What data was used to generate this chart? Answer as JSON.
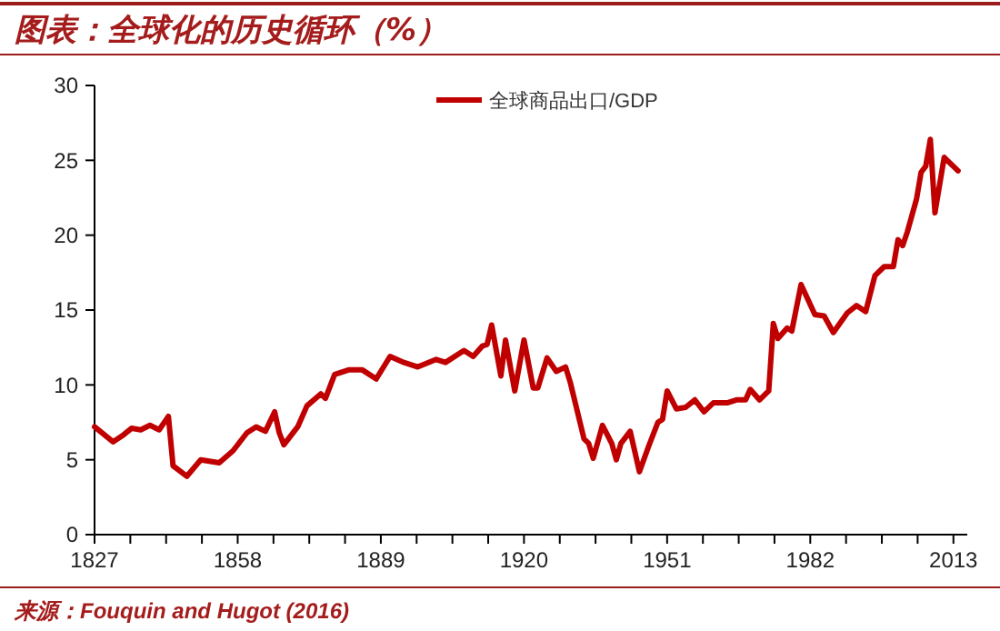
{
  "chart_data": {
    "type": "line",
    "title": "图表：全球化的历史循环（%）",
    "annotations": [
      "来源：Fouquin and Hugot (2016)"
    ],
    "legend": "top",
    "xlim": [
      1827,
      2016
    ],
    "xticks": [
      1827,
      {
        "value": 1834.75,
        "label": null
      },
      {
        "value": 1842.5,
        "label": null
      },
      {
        "value": 1850.25,
        "label": null
      },
      1858,
      {
        "value": 1865.75,
        "label": null
      },
      {
        "value": 1873.5,
        "label": null
      },
      {
        "value": 1881.25,
        "label": null
      },
      1889,
      {
        "value": 1896.75,
        "label": null
      },
      {
        "value": 1904.5,
        "label": null
      },
      {
        "value": 1912.25,
        "label": null
      },
      1920,
      {
        "value": 1927.75,
        "label": null
      },
      {
        "value": 1935.5,
        "label": null
      },
      {
        "value": 1943.25,
        "label": null
      },
      1951,
      {
        "value": 1958.75,
        "label": null
      },
      {
        "value": 1966.5,
        "label": null
      },
      {
        "value": 1974.25,
        "label": null
      },
      1982,
      {
        "value": 1989.75,
        "label": null
      },
      {
        "value": 1997.5,
        "label": null
      },
      {
        "value": 2005.25,
        "label": null
      },
      2013
    ],
    "ylim": [
      0,
      30
    ],
    "yticks": [
      0,
      5,
      10,
      15,
      20,
      25,
      30
    ],
    "series": [
      {
        "name": "全球商品出口/GDP",
        "color": "#c00000",
        "x": [
          1827,
          1831,
          1833,
          1835,
          1837,
          1839,
          1841,
          1843,
          1844,
          1847,
          1850,
          1854,
          1857,
          1860,
          1862,
          1864,
          1866,
          1867,
          1868,
          1871,
          1873,
          1876,
          1877,
          1879,
          1882,
          1885,
          1888,
          1891,
          1894,
          1897,
          1901,
          1903,
          1907,
          1909,
          1911,
          1912,
          1913,
          1915,
          1916,
          1918,
          1920,
          1922,
          1923,
          1925,
          1927,
          1929,
          1930,
          1933,
          1934,
          1935,
          1937,
          1939,
          1940,
          1941,
          1943,
          1945,
          1947,
          1949,
          1950,
          1951,
          1953,
          1955,
          1957,
          1959,
          1961,
          1964,
          1966,
          1968,
          1969,
          1971,
          1973,
          1974,
          1975,
          1977,
          1978,
          1980,
          1983,
          1985,
          1987,
          1990,
          1992,
          1994,
          1996,
          1998,
          2000,
          2001,
          2002,
          2003,
          2005,
          2006,
          2007,
          2008,
          2009,
          2011,
          2014
        ],
        "values": [
          7.2,
          6.2,
          6.6,
          7.1,
          7.0,
          7.3,
          7.0,
          7.9,
          4.6,
          3.9,
          5.0,
          4.8,
          5.6,
          6.8,
          7.2,
          6.9,
          8.2,
          6.8,
          6.0,
          7.2,
          8.6,
          9.4,
          9.1,
          10.7,
          11.0,
          11.0,
          10.4,
          11.9,
          11.5,
          11.2,
          11.7,
          11.5,
          12.3,
          11.9,
          12.6,
          12.7,
          14.0,
          10.6,
          13.0,
          9.6,
          13.0,
          9.8,
          9.8,
          11.8,
          10.9,
          11.2,
          10.2,
          6.4,
          6.1,
          5.1,
          7.3,
          6.1,
          5.0,
          6.1,
          6.9,
          4.2,
          5.9,
          7.5,
          7.7,
          9.6,
          8.4,
          8.5,
          9.0,
          8.2,
          8.8,
          8.8,
          9.0,
          9.0,
          9.7,
          9.0,
          9.6,
          14.1,
          13.1,
          13.8,
          13.6,
          16.7,
          14.7,
          14.6,
          13.5,
          14.8,
          15.3,
          14.9,
          17.3,
          17.9,
          17.9,
          19.7,
          19.3,
          20.2,
          22.4,
          24.2,
          24.6,
          26.4,
          21.5,
          25.2,
          24.3
        ]
      }
    ]
  }
}
